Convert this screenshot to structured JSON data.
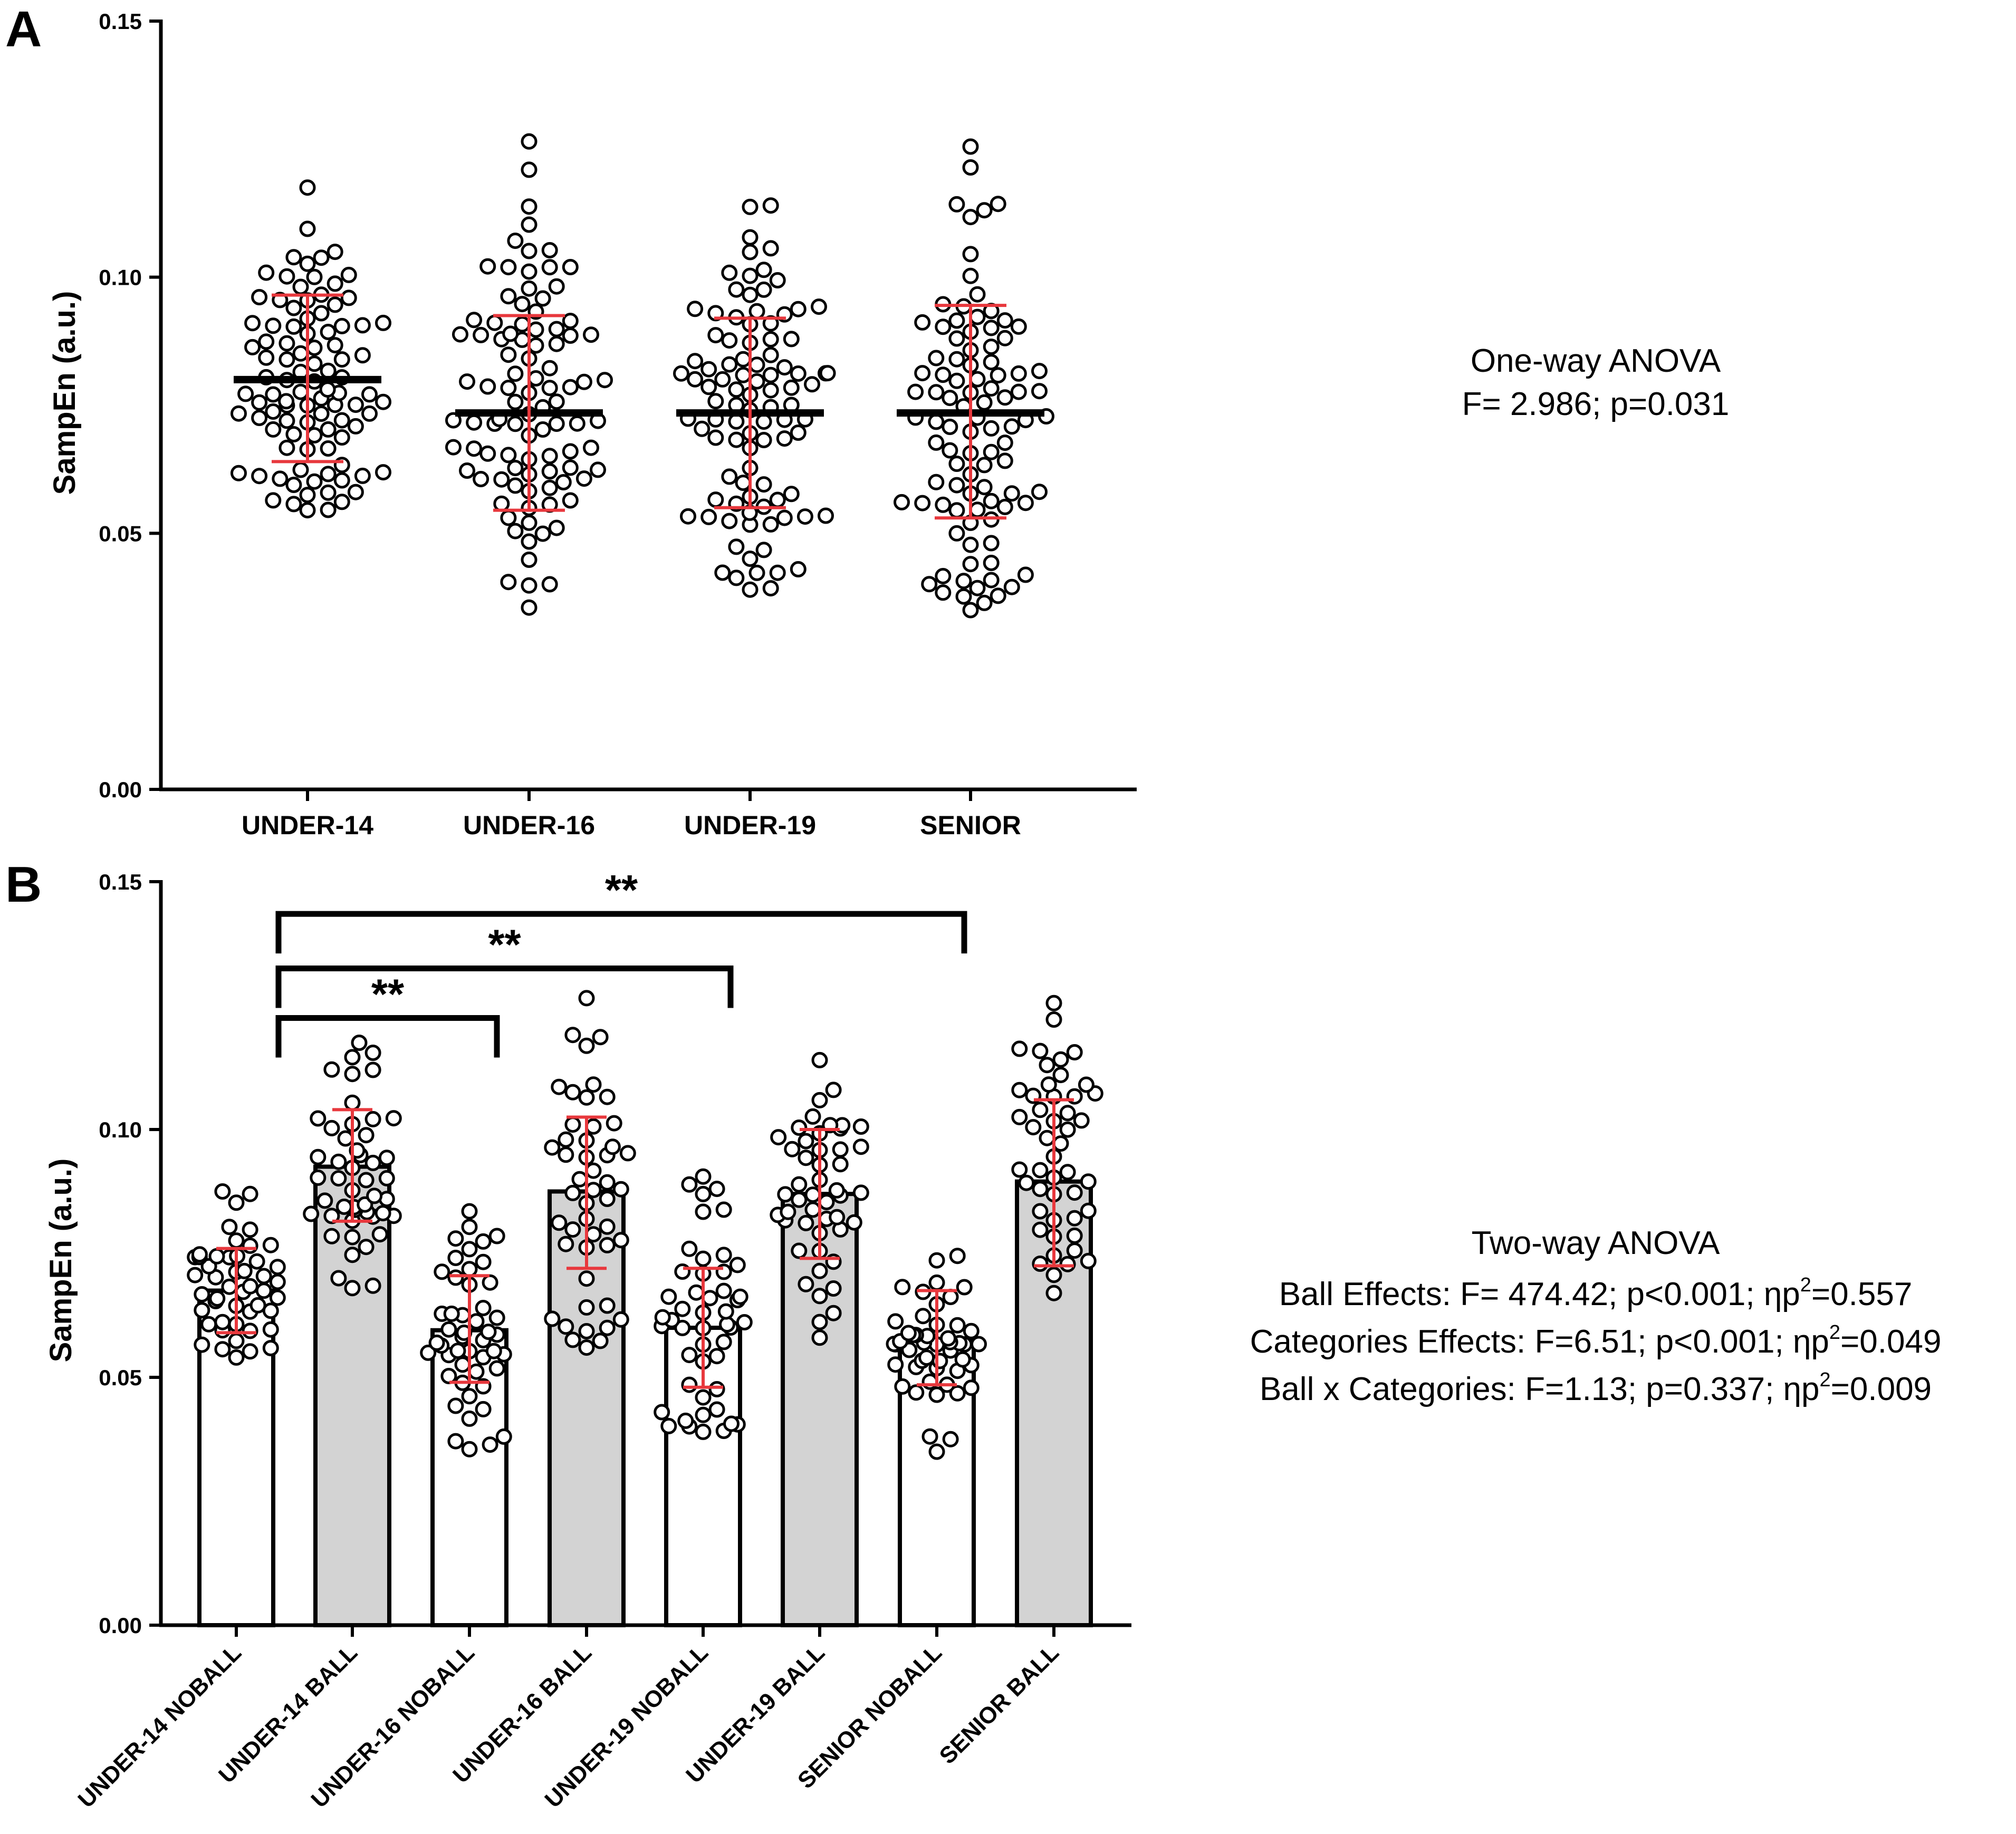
{
  "panel_a": {
    "letter": "A"
  },
  "panel_b": {
    "letter": "B"
  },
  "stats_a": {
    "title": "One-way ANOVA",
    "line1": "F= 2.986; p=0.031"
  },
  "stats_b": {
    "title": "Two-way ANOVA",
    "lines": [
      {
        "text": "Ball Effects: F= 474.42; p<0.001; ηp",
        "sup": "2",
        "tail": "=0.557"
      },
      {
        "text": "Categories Effects: F=6.51; p<0.001; ηp",
        "sup": "2",
        "tail": "=0.049"
      },
      {
        "text": "Ball x Categories: F=1.13; p=0.337; ηp",
        "sup": "2",
        "tail": "=0.009"
      }
    ]
  },
  "colors": {
    "error_bar": "#e8383d",
    "bar_ball": "#d3d3d3",
    "bar_noball": "#ffffff",
    "axis": "#000000"
  },
  "chart_data": [
    {
      "type": "scatter",
      "ylabel": "SampEn (a.u.)",
      "ylim": [
        0,
        0.15
      ],
      "yticks": [
        0.0,
        0.05,
        0.1,
        0.15
      ],
      "ytick_labels": [
        "0.00",
        "0.05",
        "0.10",
        "0.15"
      ],
      "categories": [
        "UNDER-14",
        "UNDER-16",
        "UNDER-19",
        "SENIOR"
      ],
      "means": [
        0.08,
        0.0735,
        0.0735,
        0.0735
      ],
      "sd_upper": [
        0.0965,
        0.0925,
        0.092,
        0.0945
      ],
      "sd_lower": [
        0.064,
        0.0545,
        0.055,
        0.053
      ],
      "ranges": [
        [
          0.0545,
          0.1175
        ],
        [
          0.0355,
          0.1265
        ],
        [
          0.039,
          0.114
        ],
        [
          0.035,
          0.1255
        ]
      ],
      "n_per_group": 96
    },
    {
      "type": "bar",
      "ylabel": "SampEn (a.u.)",
      "ylim": [
        0,
        0.15
      ],
      "yticks": [
        0.0,
        0.05,
        0.1,
        0.15
      ],
      "ytick_labels": [
        "0.00",
        "0.05",
        "0.10",
        "0.15"
      ],
      "categories": [
        "UNDER-14 NOBALL",
        "UNDER-14 BALL",
        "UNDER-16 NOBALL",
        "UNDER-16 BALL",
        "UNDER-19 NOBALL",
        "UNDER-19 BALL",
        "SENIOR NOBALL",
        "SENIOR BALL"
      ],
      "ball": [
        false,
        true,
        false,
        true,
        false,
        true,
        false,
        true
      ],
      "values": [
        0.0675,
        0.0925,
        0.0595,
        0.0875,
        0.06,
        0.087,
        0.0575,
        0.0895
      ],
      "sd_upper": [
        0.076,
        0.104,
        0.0705,
        0.1025,
        0.072,
        0.1,
        0.0675,
        0.106
      ],
      "sd_lower": [
        0.059,
        0.0815,
        0.049,
        0.072,
        0.048,
        0.074,
        0.0485,
        0.0725
      ],
      "ranges": [
        [
          0.054,
          0.0875
        ],
        [
          0.068,
          0.1175
        ],
        [
          0.0355,
          0.0835
        ],
        [
          0.056,
          0.1265
        ],
        [
          0.039,
          0.0905
        ],
        [
          0.058,
          0.114
        ],
        [
          0.035,
          0.0745
        ],
        [
          0.067,
          0.1255
        ]
      ],
      "n_per_group": 48,
      "significance": [
        {
          "from": "UNDER-14 NOBALL",
          "to": "UNDER-16 NOBALL",
          "label": "**",
          "y": 0.1225
        },
        {
          "from": "UNDER-14 NOBALL",
          "to": "UNDER-19 NOBALL",
          "label": "**",
          "y": 0.1325
        },
        {
          "from": "UNDER-14 NOBALL",
          "to": "SENIOR NOBALL",
          "label": "**",
          "y": 0.1435
        }
      ]
    }
  ]
}
